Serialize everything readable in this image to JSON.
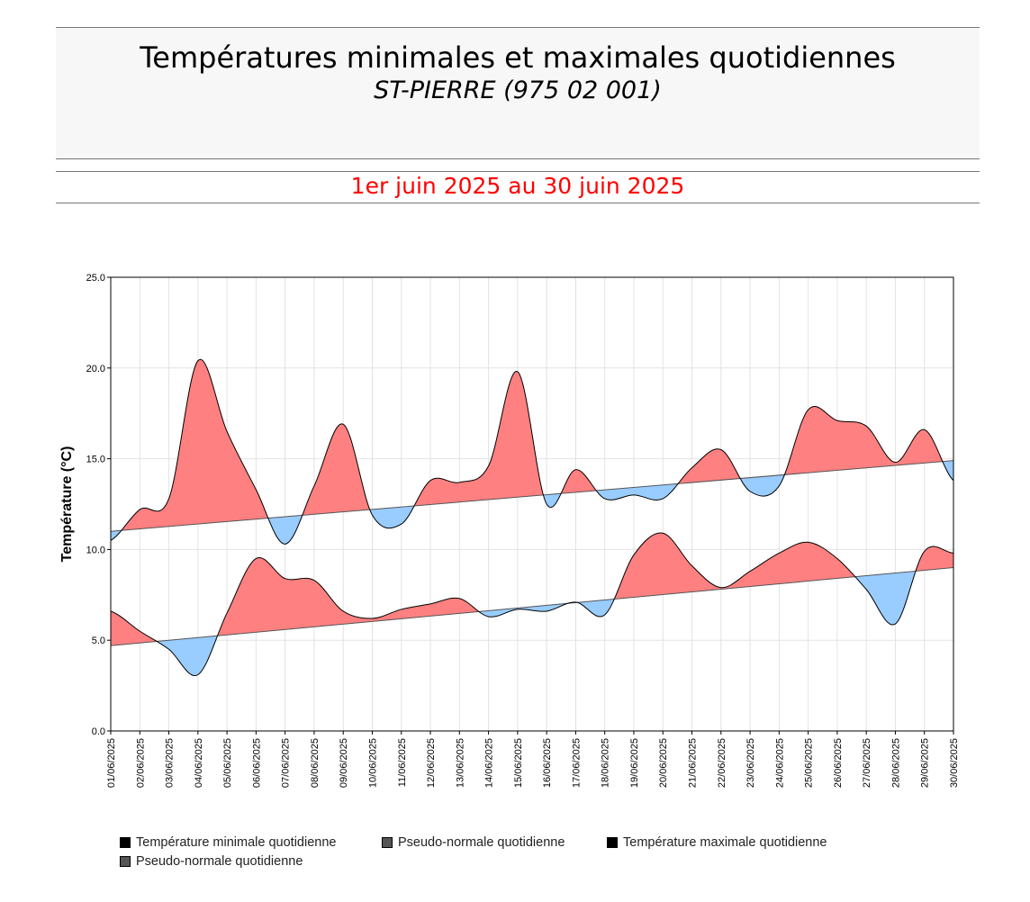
{
  "header": {
    "title": "Températures minimales et maximales quotidiennes",
    "subtitle": "ST-PIERRE (975 02 001)",
    "period": "1er juin 2025 au 30 juin 2025"
  },
  "chart_data": {
    "type": "area",
    "ylabel": "Température (°C)",
    "ylim": [
      0,
      25
    ],
    "yticks": [
      "0.0",
      "5.0",
      "10.0",
      "15.0",
      "20.0",
      "25.0"
    ],
    "grid": true,
    "categories": [
      "01/06/2025",
      "02/06/2025",
      "03/06/2025",
      "04/06/2025",
      "05/06/2025",
      "06/06/2025",
      "07/06/2025",
      "08/06/2025",
      "09/06/2025",
      "10/06/2025",
      "11/06/2025",
      "12/06/2025",
      "13/06/2025",
      "14/06/2025",
      "15/06/2025",
      "16/06/2025",
      "17/06/2025",
      "18/06/2025",
      "19/06/2025",
      "20/06/2025",
      "21/06/2025",
      "22/06/2025",
      "23/06/2025",
      "24/06/2025",
      "25/06/2025",
      "26/06/2025",
      "27/06/2025",
      "28/06/2025",
      "29/06/2025",
      "30/06/2025"
    ],
    "series": [
      {
        "name": "Température minimale quotidienne",
        "values": [
          6.6,
          5.5,
          4.5,
          3.1,
          6.5,
          9.5,
          8.4,
          8.3,
          6.6,
          6.2,
          6.7,
          7.0,
          7.3,
          6.3,
          6.7,
          6.6,
          7.1,
          6.4,
          9.7,
          10.9,
          9.1,
          7.9,
          8.8,
          9.8,
          10.4,
          9.5,
          7.8,
          5.9,
          9.9,
          9.8
        ],
        "color": "#000000"
      },
      {
        "name": "Pseudo-normale quotidienne",
        "start": 4.7,
        "end": 9.0,
        "color": "#555555"
      },
      {
        "name": "Température maximale quotidienne",
        "values": [
          10.5,
          12.2,
          12.8,
          20.4,
          16.5,
          13.3,
          10.3,
          13.5,
          16.9,
          11.9,
          11.4,
          13.8,
          13.7,
          14.6,
          19.8,
          12.5,
          14.4,
          12.8,
          13.0,
          12.8,
          14.5,
          15.5,
          13.2,
          13.5,
          17.7,
          17.1,
          16.8,
          14.8,
          16.6,
          13.8
        ],
        "color": "#000000"
      },
      {
        "name": "Pseudo-normale quotidienne",
        "start": 11.0,
        "end": 14.9,
        "color": "#555555"
      }
    ],
    "above_color": "#ff8080",
    "below_color": "#99ccff",
    "legend_position": "bottom"
  }
}
